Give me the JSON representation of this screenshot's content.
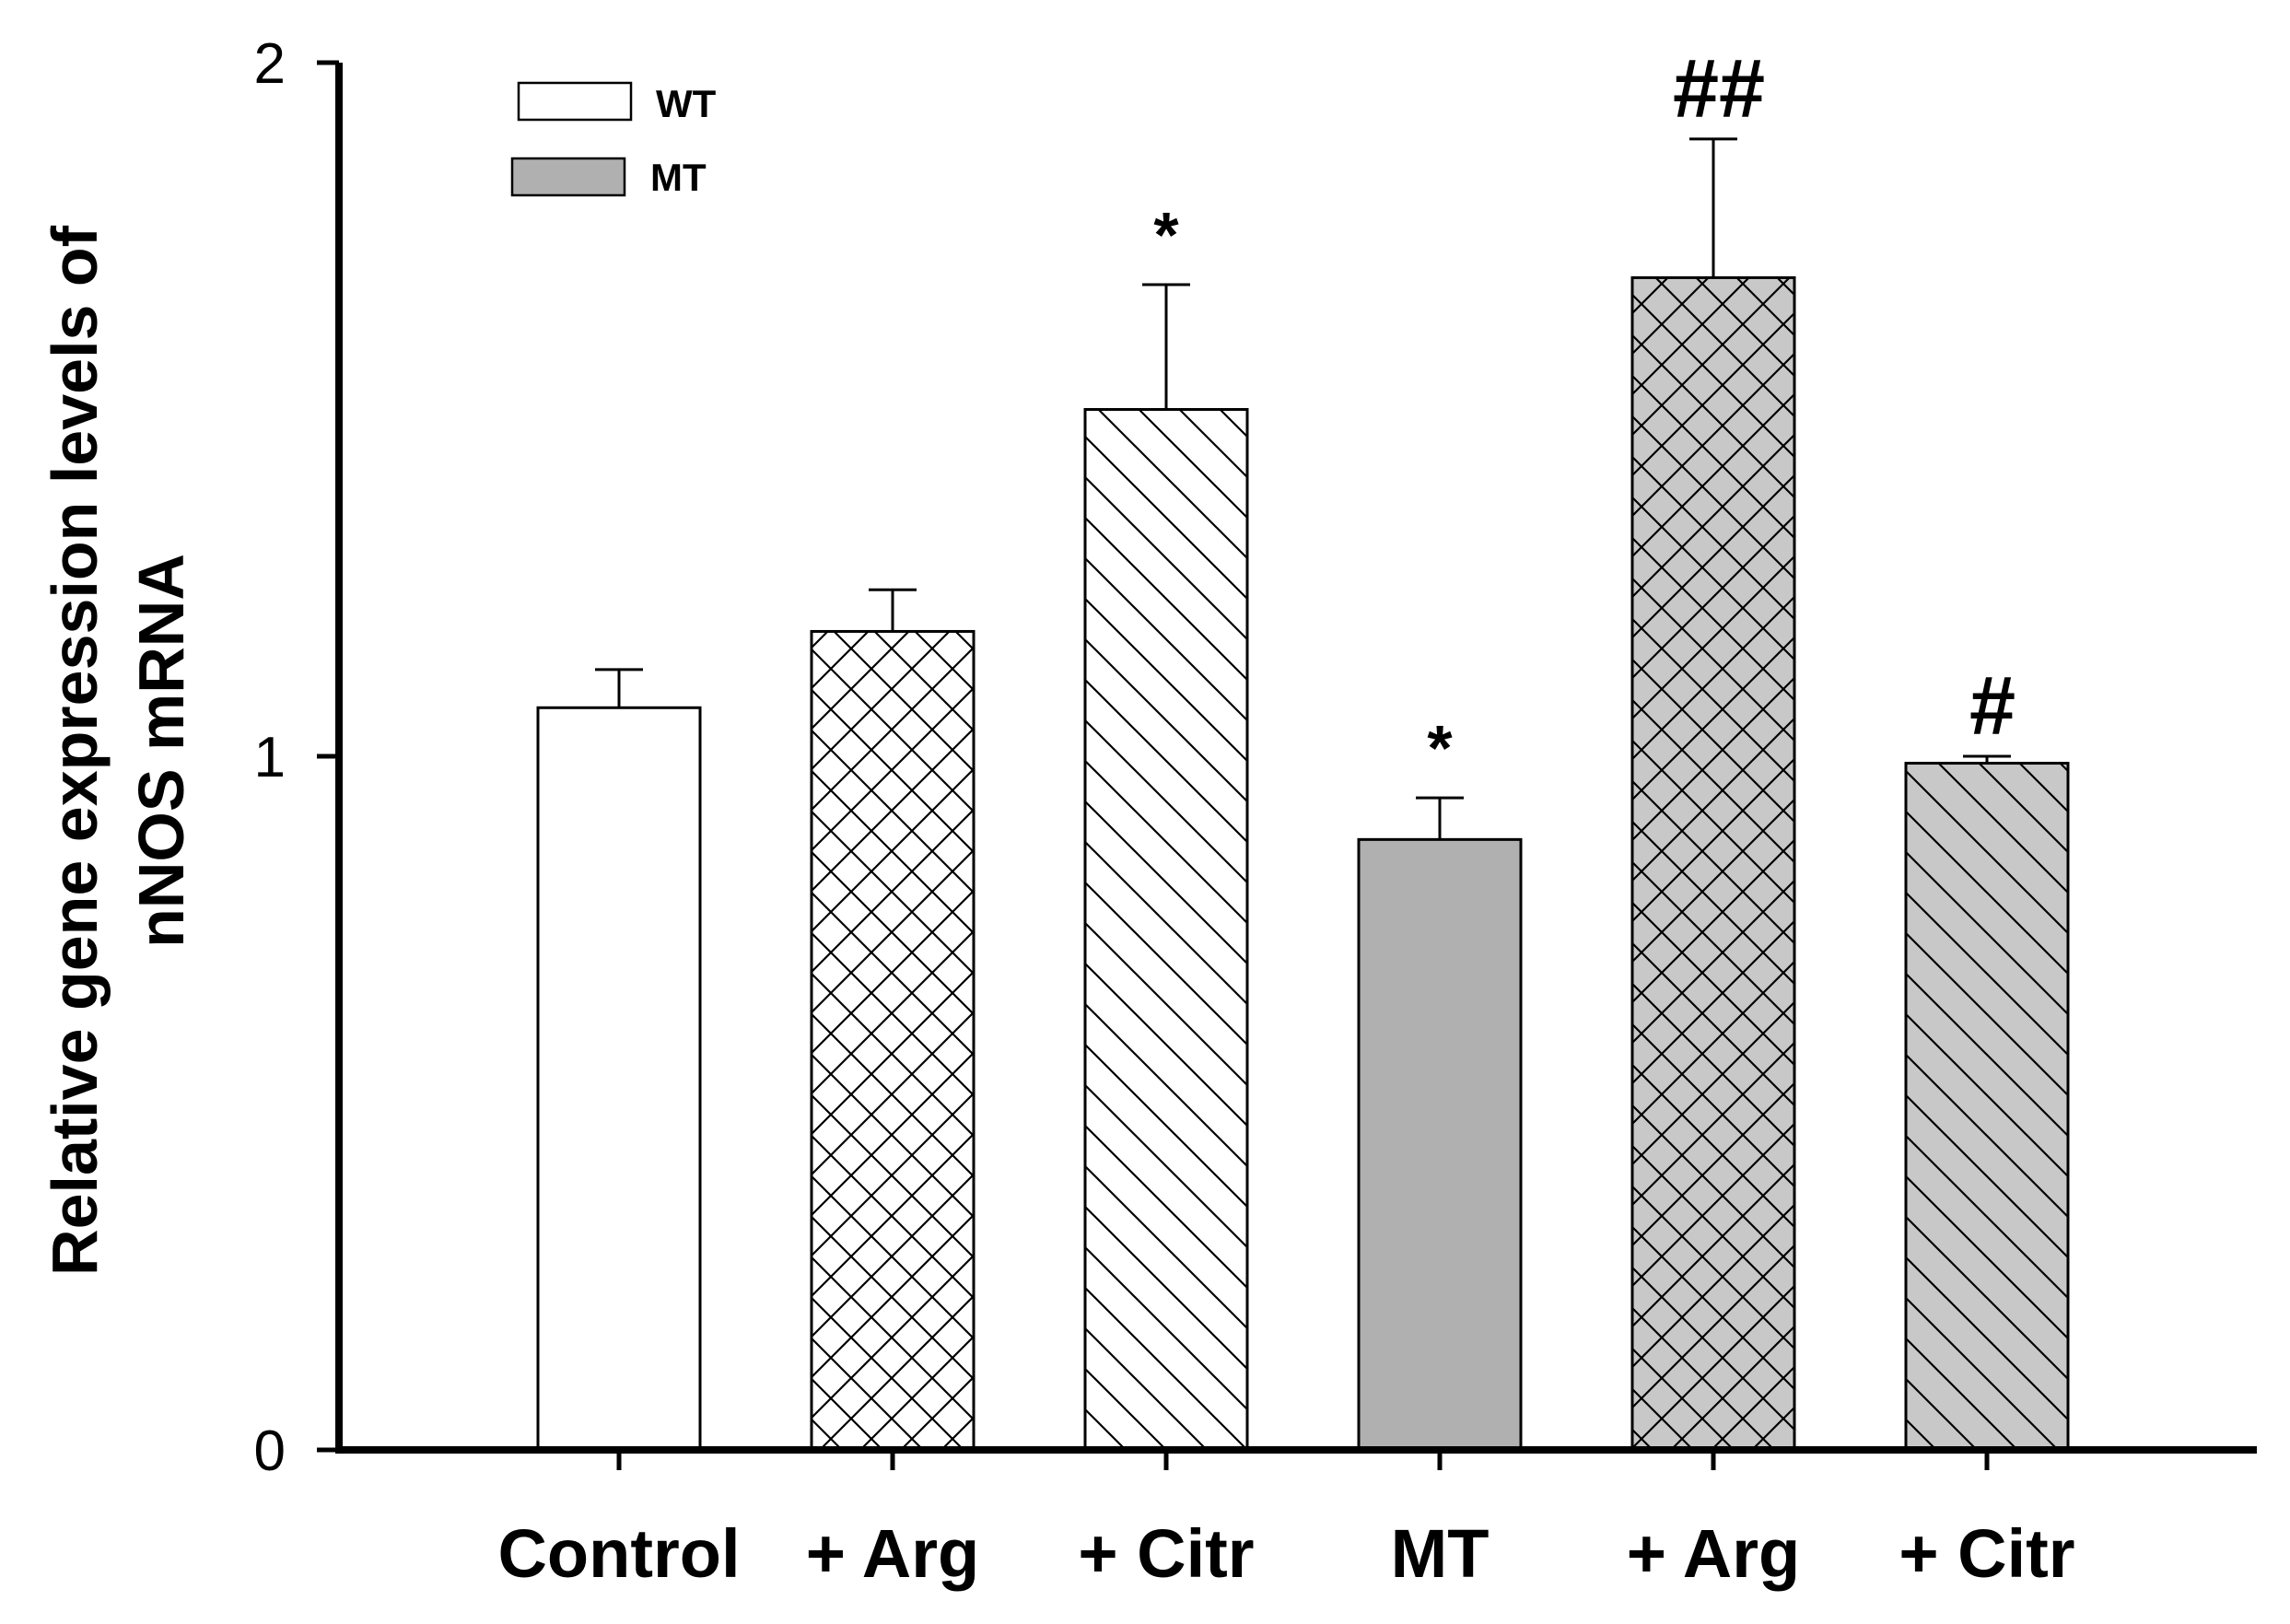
{
  "chart_data": {
    "type": "bar",
    "title": "",
    "xlabel": "",
    "ylabel": "Relative gene expression levels of nNOS mRNA",
    "ylabel_lines": [
      "Relative gene expression levels of",
      "nNOS mRNA"
    ],
    "ylim": [
      0,
      2
    ],
    "yticks": [
      0,
      1,
      2
    ],
    "ytick_labels": [
      "0",
      "1",
      "2"
    ],
    "categories": [
      "Control",
      "+ Arg",
      "+ Citr",
      "MT",
      "+ Arg",
      "+ Citr"
    ],
    "values": [
      1.07,
      1.18,
      1.5,
      0.88,
      1.69,
      0.99
    ],
    "errors": [
      0.055,
      0.06,
      0.18,
      0.06,
      0.2,
      0.01
    ],
    "groups": [
      "WT",
      "WT",
      "WT",
      "MT",
      "MT",
      "MT"
    ],
    "patterns": [
      "none",
      "crosshatch",
      "diagonal",
      "none",
      "crosshatch",
      "diagonal"
    ],
    "annotations": [
      "",
      "",
      "*",
      "*",
      "##",
      "#"
    ],
    "legend": [
      {
        "label": "WT",
        "color": "#ffffff"
      },
      {
        "label": "MT",
        "color": "#b0b0b0"
      }
    ],
    "legend_position": "top-left",
    "grid": false
  },
  "colors": {
    "wt_fill": "#ffffff",
    "mt_fill": "#b0b0b0",
    "mt_patterned_fill": "#c8c8c8",
    "stroke": "#000000"
  }
}
